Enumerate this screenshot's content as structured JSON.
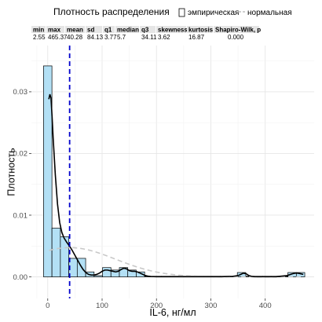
{
  "chart_data": {
    "type": "histogram",
    "title": "",
    "legend": {
      "title": "Плотность распределения",
      "position": "top",
      "entries": [
        {
          "label": "эмпирическая",
          "color": "#000000",
          "style": "solid"
        },
        {
          "label": "нормальная",
          "color": "#bfbfbf",
          "style": "dashed"
        }
      ]
    },
    "xlabel": "IL-6, нг/мл",
    "ylabel": "Плотность",
    "xlim": [
      -30,
      490
    ],
    "ylim": [
      -0.0035,
      0.0375
    ],
    "xticks": [
      0,
      100,
      200,
      300,
      400
    ],
    "yticks": [
      0.0,
      0.01,
      0.02,
      0.03
    ],
    "ytick_labels": [
      "0.00",
      "0.01",
      "0.02",
      "0.03"
    ],
    "grid": true,
    "bin_width": 15.5,
    "bins": [
      {
        "x0": -7.75,
        "x1": 7.75,
        "density": 0.0342
      },
      {
        "x0": 7.75,
        "x1": 23.25,
        "density": 0.0079
      },
      {
        "x0": 23.25,
        "x1": 38.75,
        "density": 0.0065
      },
      {
        "x0": 38.75,
        "x1": 54.25,
        "density": 0.003
      },
      {
        "x0": 54.25,
        "x1": 69.75,
        "density": 0.003
      },
      {
        "x0": 69.75,
        "x1": 85.25,
        "density": 0.0008
      },
      {
        "x0": 85.25,
        "x1": 100.75,
        "density": 0.0002
      },
      {
        "x0": 100.75,
        "x1": 116.25,
        "density": 0.0015
      },
      {
        "x0": 116.25,
        "x1": 131.75,
        "density": 0.0011
      },
      {
        "x0": 131.75,
        "x1": 147.25,
        "density": 0.0015
      },
      {
        "x0": 147.25,
        "x1": 162.75,
        "density": 0.0011
      },
      {
        "x0": 162.75,
        "x1": 178.25,
        "density": 0.0008
      },
      {
        "x0": 178.25,
        "x1": 193.75,
        "density": 0.0001
      },
      {
        "x0": 193.75,
        "x1": 209.25,
        "density": 0.0001
      },
      {
        "x0": 209.25,
        "x1": 224.75,
        "density": 0.0001
      },
      {
        "x0": 224.75,
        "x1": 240.25,
        "density": 0.0001
      },
      {
        "x0": 240.25,
        "x1": 255.75,
        "density": 0.0001
      },
      {
        "x0": 255.75,
        "x1": 271.25,
        "density": 0.0001
      },
      {
        "x0": 271.25,
        "x1": 286.75,
        "density": 0.0001
      },
      {
        "x0": 286.75,
        "x1": 302.25,
        "density": 0.0001
      },
      {
        "x0": 302.25,
        "x1": 317.75,
        "density": 0.0001
      },
      {
        "x0": 317.75,
        "x1": 333.25,
        "density": 0.0001
      },
      {
        "x0": 333.25,
        "x1": 348.75,
        "density": 0.0001
      },
      {
        "x0": 348.75,
        "x1": 364.25,
        "density": 0.0007
      },
      {
        "x0": 364.25,
        "x1": 379.75,
        "density": 0.0001
      },
      {
        "x0": 379.75,
        "x1": 395.25,
        "density": 0.0001
      },
      {
        "x0": 395.25,
        "x1": 410.75,
        "density": 0.0001
      },
      {
        "x0": 410.75,
        "x1": 426.25,
        "density": 0.0001
      },
      {
        "x0": 426.25,
        "x1": 441.75,
        "density": 0.0001
      },
      {
        "x0": 441.75,
        "x1": 457.25,
        "density": 0.0007
      },
      {
        "x0": 457.25,
        "x1": 472.75,
        "density": 0.0007
      }
    ],
    "bar_fill": "#b3e0f5",
    "bar_stroke": "#000000",
    "mean_line": {
      "x": 40.28,
      "color": "#0000cc",
      "style": "dashed"
    },
    "empirical_density": {
      "x": [
        2,
        4,
        6,
        8,
        10,
        14,
        18,
        22,
        26,
        30,
        35,
        40,
        45,
        50,
        55,
        60,
        65,
        70,
        75,
        80,
        85,
        90,
        95,
        100,
        105,
        110,
        115,
        120,
        125,
        130,
        135,
        140,
        145,
        150,
        155,
        160,
        165,
        170,
        175,
        180,
        185,
        190,
        200,
        220,
        250,
        280,
        300,
        320,
        340,
        350,
        355,
        360,
        365,
        370,
        375,
        380,
        390,
        400,
        420,
        440,
        450,
        455,
        460,
        465,
        470
      ],
      "y": [
        0.0288,
        0.0296,
        0.029,
        0.026,
        0.0225,
        0.0165,
        0.0118,
        0.0088,
        0.0072,
        0.0063,
        0.0056,
        0.005,
        0.0043,
        0.0035,
        0.0027,
        0.0019,
        0.0012,
        0.0007,
        0.0004,
        0.0003,
        0.0003,
        0.0004,
        0.0006,
        0.0009,
        0.0011,
        0.0011,
        0.001,
        0.0009,
        0.0008,
        0.0009,
        0.0012,
        0.0014,
        0.0013,
        0.001,
        0.0009,
        0.0009,
        0.0008,
        0.0006,
        0.0004,
        0.0002,
        0.0001,
        5e-05,
        3e-05,
        2e-05,
        2e-05,
        2e-05,
        2e-05,
        3e-05,
        8e-05,
        0.0002,
        0.0004,
        0.0006,
        0.0005,
        0.0002,
        8e-05,
        3e-05,
        2e-05,
        2e-05,
        3e-05,
        0.0002,
        0.0005,
        0.0006,
        0.0006,
        0.0005,
        0.0004
      ]
    },
    "normal_density": {
      "mean": 40.28,
      "sd": 84.13,
      "x_from": 2.55,
      "x_to": 465.37
    },
    "stats_table": {
      "headers": [
        "min",
        "max",
        "mean",
        "sd",
        "q1",
        "median",
        "q3",
        "skewness",
        "kurtosis",
        "Shapiro-Wilk, p"
      ],
      "values": [
        "2.55",
        "465.37",
        "40.28",
        "84.13",
        "3.77",
        "5.7",
        "34.11",
        "3.62",
        "16.87",
        "0.000"
      ]
    }
  }
}
